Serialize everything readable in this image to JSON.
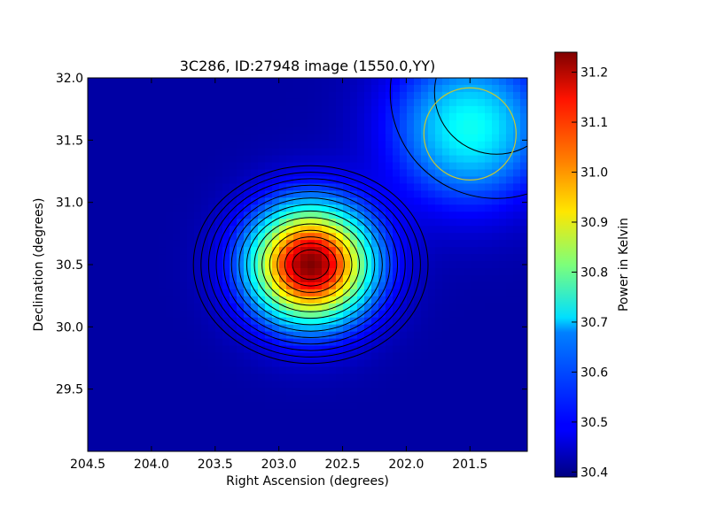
{
  "chart_data": {
    "type": "heatmap",
    "title": "3C286, ID:27948 image (1550.0,YY)",
    "xlabel": "Right Ascension (degrees)",
    "ylabel": "Declination (degrees)",
    "xlim": [
      204.5,
      201.05
    ],
    "ylim": [
      29.0,
      32.0
    ],
    "x_ticks": [
      204.5,
      204.0,
      203.5,
      203.0,
      202.5,
      202.0,
      201.5
    ],
    "x_tick_labels": [
      "204.5",
      "204.0",
      "203.5",
      "203.0",
      "202.5",
      "202.0",
      "201.5"
    ],
    "y_ticks": [
      29.5,
      30.0,
      30.5,
      31.0,
      31.5,
      32.0
    ],
    "y_tick_labels": [
      "29.5",
      "30.0",
      "30.5",
      "31.0",
      "31.5",
      "32.0"
    ],
    "colormap": "jet",
    "colorbar": {
      "label": "Power in Kelvin",
      "range": [
        30.39,
        31.24
      ],
      "ticks": [
        30.4,
        30.5,
        30.6,
        30.7,
        30.8,
        30.9,
        31.0,
        31.1,
        31.2
      ],
      "tick_labels": [
        "30.4",
        "30.5",
        "30.6",
        "30.7",
        "30.8",
        "30.9",
        "31.0",
        "31.1",
        "31.2"
      ]
    },
    "sources": [
      {
        "ra": 202.75,
        "dec": 30.5,
        "peak": 31.24
      },
      {
        "ra": 201.5,
        "dec": 31.6,
        "peak": 30.72
      }
    ],
    "background": 30.42,
    "contours": "black",
    "marker_circle": {
      "ra": 201.5,
      "dec": 31.55,
      "radius_deg": 0.37,
      "color": "#c8c832"
    }
  }
}
